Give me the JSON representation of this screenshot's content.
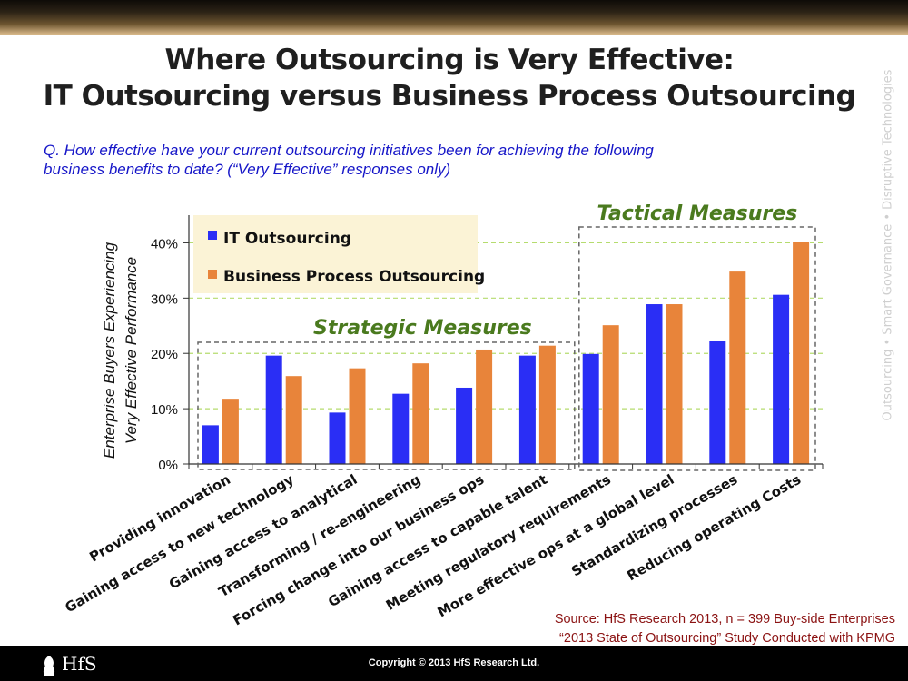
{
  "slide": {
    "title_line1": "Where Outsourcing is Very Effective:",
    "title_line2": "IT Outsourcing versus Business Process Outsourcing",
    "question_line1": "Q. How effective have your current outsourcing initiatives been for achieving the following",
    "question_line2": "business benefits to date? (“Very Effective” responses only)",
    "side_tagline": "Outsourcing • Smart Governance • Disruptive Technologies",
    "source_line1": "Source: HfS Research 2013, n = 399 Buy-side Enterprises",
    "source_line2": "“2013 State of Outsourcing” Study Conducted with KPMG",
    "logo_text": "HfS",
    "copyright": "Copyright © 2013 HfS Research Ltd."
  },
  "colors": {
    "it": "#2a2ef5",
    "bpo": "#e8843a",
    "group_label": "#4a7a1e",
    "legend_bg": "#fbf3d6",
    "gridline": "#b5dc6e"
  },
  "chart_data": {
    "type": "bar",
    "ylabel_line1": "Enterprise Buyers Experiencing",
    "ylabel_line2": "Very Effective Performance",
    "yticks": [
      "0%",
      "10%",
      "20%",
      "30%",
      "40%"
    ],
    "ylim": [
      0,
      45
    ],
    "legend_placement": "top-left",
    "categories": [
      "Providing innovation",
      "Gaining access to new technology",
      "Gaining access to analytical",
      "Transforming / re-engineering",
      "Forcing change into our business ops",
      "Gaining access to capable talent",
      "Meeting regulatory requirements",
      "More effective ops at a global level",
      "Standardizing processes",
      "Reducing operating Costs"
    ],
    "series": [
      {
        "name": "IT Outsourcing",
        "values": [
          7,
          19.6,
          9.3,
          12.7,
          13.8,
          19.6,
          19.9,
          28.9,
          22.3,
          30.6
        ]
      },
      {
        "name": "Business Process Outsourcing",
        "values": [
          11.8,
          15.9,
          17.3,
          18.2,
          20.7,
          21.4,
          25.1,
          28.9,
          34.8,
          40.1
        ]
      }
    ],
    "groups": [
      {
        "label": "Strategic Measures",
        "count": 6
      },
      {
        "label": "Tactical Measures",
        "count": 4
      }
    ]
  }
}
